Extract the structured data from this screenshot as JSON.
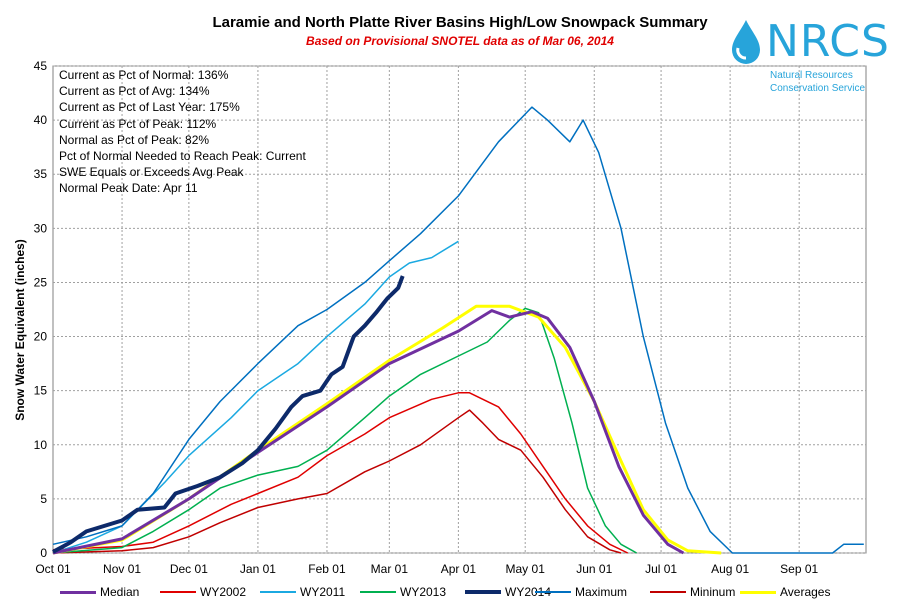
{
  "chart_data": {
    "type": "line",
    "title": "Laramie and North Platte River Basins High/Low Snowpack Summary",
    "subtitle": "Based on Provisional SNOTEL data as of Mar 06, 2014",
    "ylabel": "Snow Water Equivalent (inches)",
    "xlabel": "",
    "ylim": [
      0,
      45
    ],
    "yticks": [
      0,
      5,
      10,
      15,
      20,
      25,
      30,
      35,
      40,
      45
    ],
    "xticks": [
      "Oct 01",
      "Nov 01",
      "Dec 01",
      "Jan 01",
      "Feb 01",
      "Mar 01",
      "Apr 01",
      "May 01",
      "Jun 01",
      "Jul 01",
      "Aug 01",
      "Sep 01"
    ],
    "grid": true,
    "legend_position": "bottom",
    "stats": [
      "Current  as Pct of Normal: 136%",
      "Current  as Pct of Avg: 134%",
      "Current  as Pct of Last Year: 175%",
      "Current as Pct of Peak: 112%",
      "Normal as Pct of Peak: 82%",
      "Pct of Normal Needed  to Reach Peak: Current",
      "SWE Equals or Exceeds Avg Peak",
      "Normal Peak Date: Apr 11"
    ],
    "series": [
      {
        "name": "Median",
        "color": "#7030a0",
        "width": 3,
        "points": [
          [
            0,
            0
          ],
          [
            31,
            1.3
          ],
          [
            61,
            5
          ],
          [
            92,
            9.3
          ],
          [
            123,
            13.5
          ],
          [
            151,
            17.5
          ],
          [
            182,
            20.5
          ],
          [
            197,
            22.4
          ],
          [
            205,
            21.8
          ],
          [
            215,
            22.3
          ],
          [
            222,
            21.7
          ],
          [
            232,
            19
          ],
          [
            243,
            14
          ],
          [
            254,
            8
          ],
          [
            265,
            3.5
          ],
          [
            276,
            0.8
          ],
          [
            283,
            0
          ]
        ]
      },
      {
        "name": "WY2002",
        "color": "#e00000",
        "width": 1.5,
        "points": [
          [
            0,
            0.3
          ],
          [
            20,
            0.5
          ],
          [
            31,
            0.6
          ],
          [
            45,
            1
          ],
          [
            61,
            2.5
          ],
          [
            80,
            4.5
          ],
          [
            92,
            5.5
          ],
          [
            110,
            7
          ],
          [
            123,
            9
          ],
          [
            140,
            11
          ],
          [
            151,
            12.5
          ],
          [
            170,
            14.2
          ],
          [
            182,
            14.8
          ],
          [
            187,
            14.8
          ],
          [
            200,
            13.5
          ],
          [
            210,
            11
          ],
          [
            220,
            8
          ],
          [
            230,
            5
          ],
          [
            240,
            2.5
          ],
          [
            250,
            0.8
          ],
          [
            258,
            0
          ]
        ]
      },
      {
        "name": "WY2011",
        "color": "#1ba9e1",
        "width": 1.5,
        "points": [
          [
            0,
            0
          ],
          [
            15,
            1
          ],
          [
            31,
            2.5
          ],
          [
            50,
            6.5
          ],
          [
            61,
            9
          ],
          [
            80,
            12.5
          ],
          [
            92,
            15
          ],
          [
            110,
            17.5
          ],
          [
            123,
            20
          ],
          [
            140,
            23
          ],
          [
            151,
            25.5
          ],
          [
            160,
            26.8
          ],
          [
            170,
            27.3
          ],
          [
            182,
            28.8
          ]
        ]
      },
      {
        "name": "WY2013",
        "color": "#00b050",
        "width": 1.5,
        "points": [
          [
            0,
            0
          ],
          [
            31,
            0.5
          ],
          [
            45,
            2
          ],
          [
            61,
            4
          ],
          [
            75,
            6
          ],
          [
            92,
            7.2
          ],
          [
            110,
            8
          ],
          [
            123,
            9.5
          ],
          [
            140,
            12.5
          ],
          [
            151,
            14.5
          ],
          [
            165,
            16.5
          ],
          [
            182,
            18.2
          ],
          [
            195,
            19.5
          ],
          [
            205,
            21.5
          ],
          [
            212,
            22.6
          ],
          [
            218,
            22.2
          ],
          [
            225,
            18
          ],
          [
            233,
            12
          ],
          [
            240,
            6
          ],
          [
            248,
            2.5
          ],
          [
            255,
            0.8
          ],
          [
            262,
            0
          ]
        ]
      },
      {
        "name": "WY2014",
        "color": "#0d2a6a",
        "width": 4,
        "points": [
          [
            0,
            0.1
          ],
          [
            8,
            1
          ],
          [
            15,
            2
          ],
          [
            31,
            3
          ],
          [
            38,
            4
          ],
          [
            50,
            4.2
          ],
          [
            55,
            5.5
          ],
          [
            65,
            6.2
          ],
          [
            75,
            7
          ],
          [
            85,
            8.3
          ],
          [
            92,
            9.5
          ],
          [
            100,
            11.5
          ],
          [
            107,
            13.5
          ],
          [
            112,
            14.5
          ],
          [
            120,
            15
          ],
          [
            125,
            16.5
          ],
          [
            130,
            17.2
          ],
          [
            135,
            20
          ],
          [
            140,
            21
          ],
          [
            145,
            22.2
          ],
          [
            150,
            23.5
          ],
          [
            155,
            24.5
          ],
          [
            157,
            25.6
          ]
        ]
      },
      {
        "name": "Maximum",
        "color": "#0070c0",
        "width": 1.5,
        "points": [
          [
            0,
            0.8
          ],
          [
            15,
            1.5
          ],
          [
            31,
            2.5
          ],
          [
            45,
            5.5
          ],
          [
            61,
            10.5
          ],
          [
            75,
            14
          ],
          [
            92,
            17.5
          ],
          [
            110,
            21
          ],
          [
            123,
            22.5
          ],
          [
            140,
            25
          ],
          [
            151,
            27
          ],
          [
            165,
            29.5
          ],
          [
            182,
            33
          ],
          [
            200,
            38
          ],
          [
            215,
            41.2
          ],
          [
            222,
            40
          ],
          [
            232,
            38
          ],
          [
            238,
            40
          ],
          [
            245,
            37
          ],
          [
            255,
            30
          ],
          [
            265,
            20
          ],
          [
            275,
            12
          ],
          [
            285,
            6
          ],
          [
            295,
            2
          ],
          [
            305,
            0
          ],
          [
            350,
            0
          ],
          [
            355,
            0.8
          ],
          [
            364,
            0.8
          ]
        ]
      },
      {
        "name": "Mininum",
        "color": "#c00000",
        "width": 1.5,
        "points": [
          [
            0,
            0
          ],
          [
            31,
            0.2
          ],
          [
            45,
            0.5
          ],
          [
            61,
            1.5
          ],
          [
            75,
            2.8
          ],
          [
            92,
            4.2
          ],
          [
            110,
            5
          ],
          [
            123,
            5.5
          ],
          [
            140,
            7.5
          ],
          [
            151,
            8.5
          ],
          [
            165,
            10
          ],
          [
            182,
            12.5
          ],
          [
            187,
            13.2
          ],
          [
            193,
            12
          ],
          [
            200,
            10.5
          ],
          [
            210,
            9.5
          ],
          [
            220,
            7
          ],
          [
            230,
            4
          ],
          [
            240,
            1.5
          ],
          [
            250,
            0.3
          ],
          [
            255,
            0
          ]
        ]
      },
      {
        "name": "Averages",
        "color": "#ffff00",
        "width": 3,
        "points": [
          [
            0,
            0
          ],
          [
            31,
            1.2
          ],
          [
            61,
            5
          ],
          [
            92,
            9.5
          ],
          [
            123,
            13.8
          ],
          [
            151,
            17.8
          ],
          [
            175,
            20.8
          ],
          [
            190,
            22.8
          ],
          [
            205,
            22.8
          ],
          [
            218,
            21.8
          ],
          [
            230,
            19
          ],
          [
            243,
            14
          ],
          [
            255,
            8.5
          ],
          [
            265,
            4
          ],
          [
            276,
            1.2
          ],
          [
            285,
            0.2
          ],
          [
            300,
            0
          ]
        ]
      }
    ]
  },
  "logo": {
    "name": "NRCS",
    "line1": "Natural Resources",
    "line2": "Conservation Service"
  }
}
